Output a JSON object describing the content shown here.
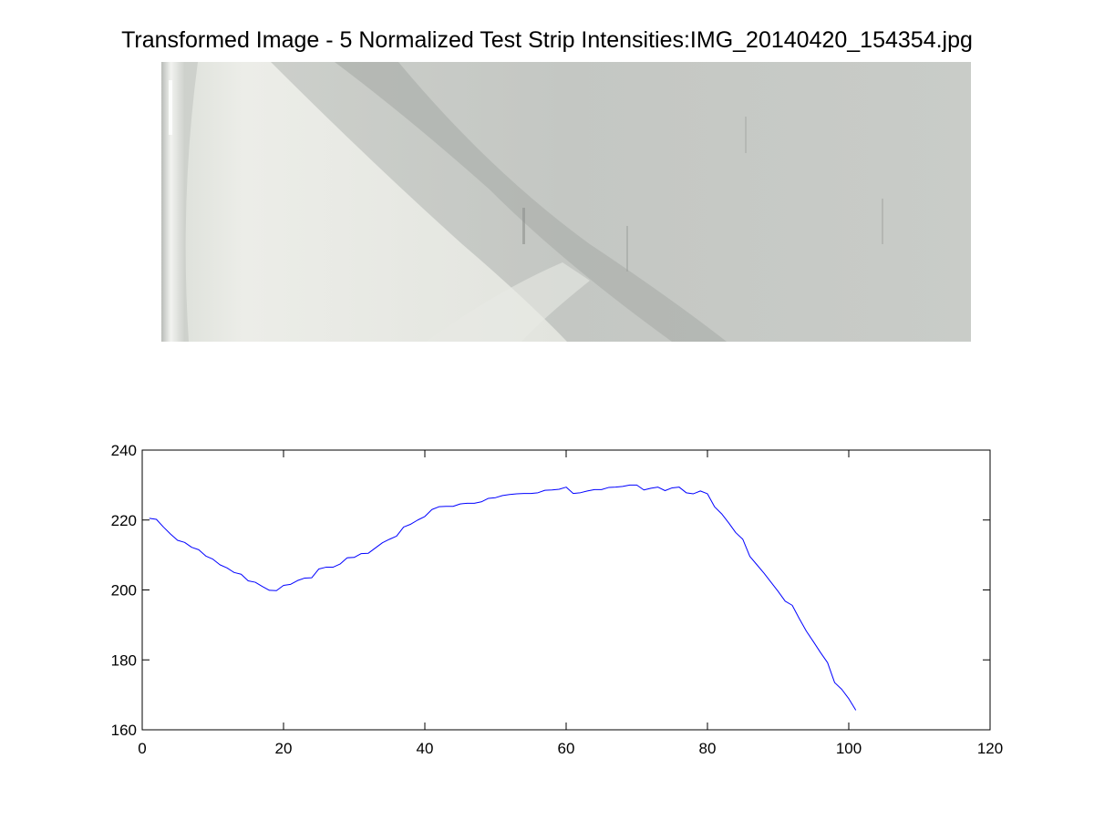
{
  "figure": {
    "title": "Transformed Image - 5 Normalized Test Strip Intensities:IMG_20140420_154354.jpg"
  },
  "colors": {
    "figure_background": "#ffffff",
    "line": "#0000ff",
    "axes": "#000000",
    "strip_base": "#c6c9c5",
    "strip_bright": "#e9ebe6",
    "strip_dark_band": "#a9aca8"
  },
  "strip_image": {
    "description_icon": "test-strip-photo"
  },
  "chart_data": {
    "type": "line",
    "title": "",
    "xlabel": "",
    "ylabel": "",
    "xlim": [
      0,
      120
    ],
    "ylim": [
      160,
      240
    ],
    "grid": false,
    "xticks": [
      0,
      20,
      40,
      60,
      80,
      100,
      120
    ],
    "yticks": [
      160,
      180,
      200,
      220,
      240
    ],
    "x": [
      1,
      2,
      3,
      4,
      5,
      6,
      7,
      8,
      9,
      10,
      11,
      12,
      13,
      14,
      15,
      16,
      17,
      18,
      19,
      20,
      21,
      22,
      23,
      24,
      25,
      26,
      27,
      28,
      29,
      30,
      31,
      32,
      33,
      34,
      35,
      36,
      37,
      38,
      39,
      40,
      41,
      42,
      43,
      44,
      45,
      46,
      47,
      48,
      49,
      50,
      51,
      52,
      53,
      54,
      55,
      56,
      57,
      58,
      59,
      60,
      61,
      62,
      63,
      64,
      65,
      66,
      67,
      68,
      69,
      70,
      71,
      72,
      73,
      74,
      75,
      76,
      77,
      78,
      79,
      80,
      81,
      82,
      83,
      84,
      85,
      86,
      87,
      88,
      89,
      90,
      91,
      92,
      93,
      94,
      95,
      96,
      97,
      98,
      99,
      100,
      101
    ],
    "series": [
      {
        "values": [
          220.5,
          220.2,
          218.0,
          216.0,
          214.2,
          213.6,
          212.2,
          211.5,
          209.7,
          208.8,
          207.2,
          206.3,
          205.0,
          204.5,
          202.6,
          202.2,
          201.0,
          199.9,
          199.8,
          201.3,
          201.6,
          202.7,
          203.4,
          203.5,
          206.0,
          206.5,
          206.5,
          207.4,
          209.2,
          209.3,
          210.4,
          210.5,
          212.0,
          213.5,
          214.5,
          215.4,
          218.0,
          218.8,
          220.0,
          221.0,
          223.0,
          223.8,
          223.9,
          223.9,
          224.6,
          224.8,
          224.8,
          225.2,
          226.2,
          226.4,
          227.0,
          227.3,
          227.5,
          227.6,
          227.6,
          227.8,
          228.5,
          228.6,
          228.8,
          229.4,
          227.6,
          227.8,
          228.3,
          228.7,
          228.7,
          229.3,
          229.4,
          229.6,
          230.0,
          230.0,
          228.6,
          229.1,
          229.4,
          228.4,
          229.2,
          229.4,
          227.8,
          227.5,
          228.3,
          227.5,
          223.8,
          221.8,
          219.2,
          216.4,
          214.5,
          209.6,
          207.2,
          204.8,
          202.2,
          199.6,
          196.8,
          195.6,
          191.8,
          188.2,
          185.2,
          182.1,
          179.2,
          173.5,
          171.6,
          168.9,
          165.6
        ]
      }
    ]
  }
}
